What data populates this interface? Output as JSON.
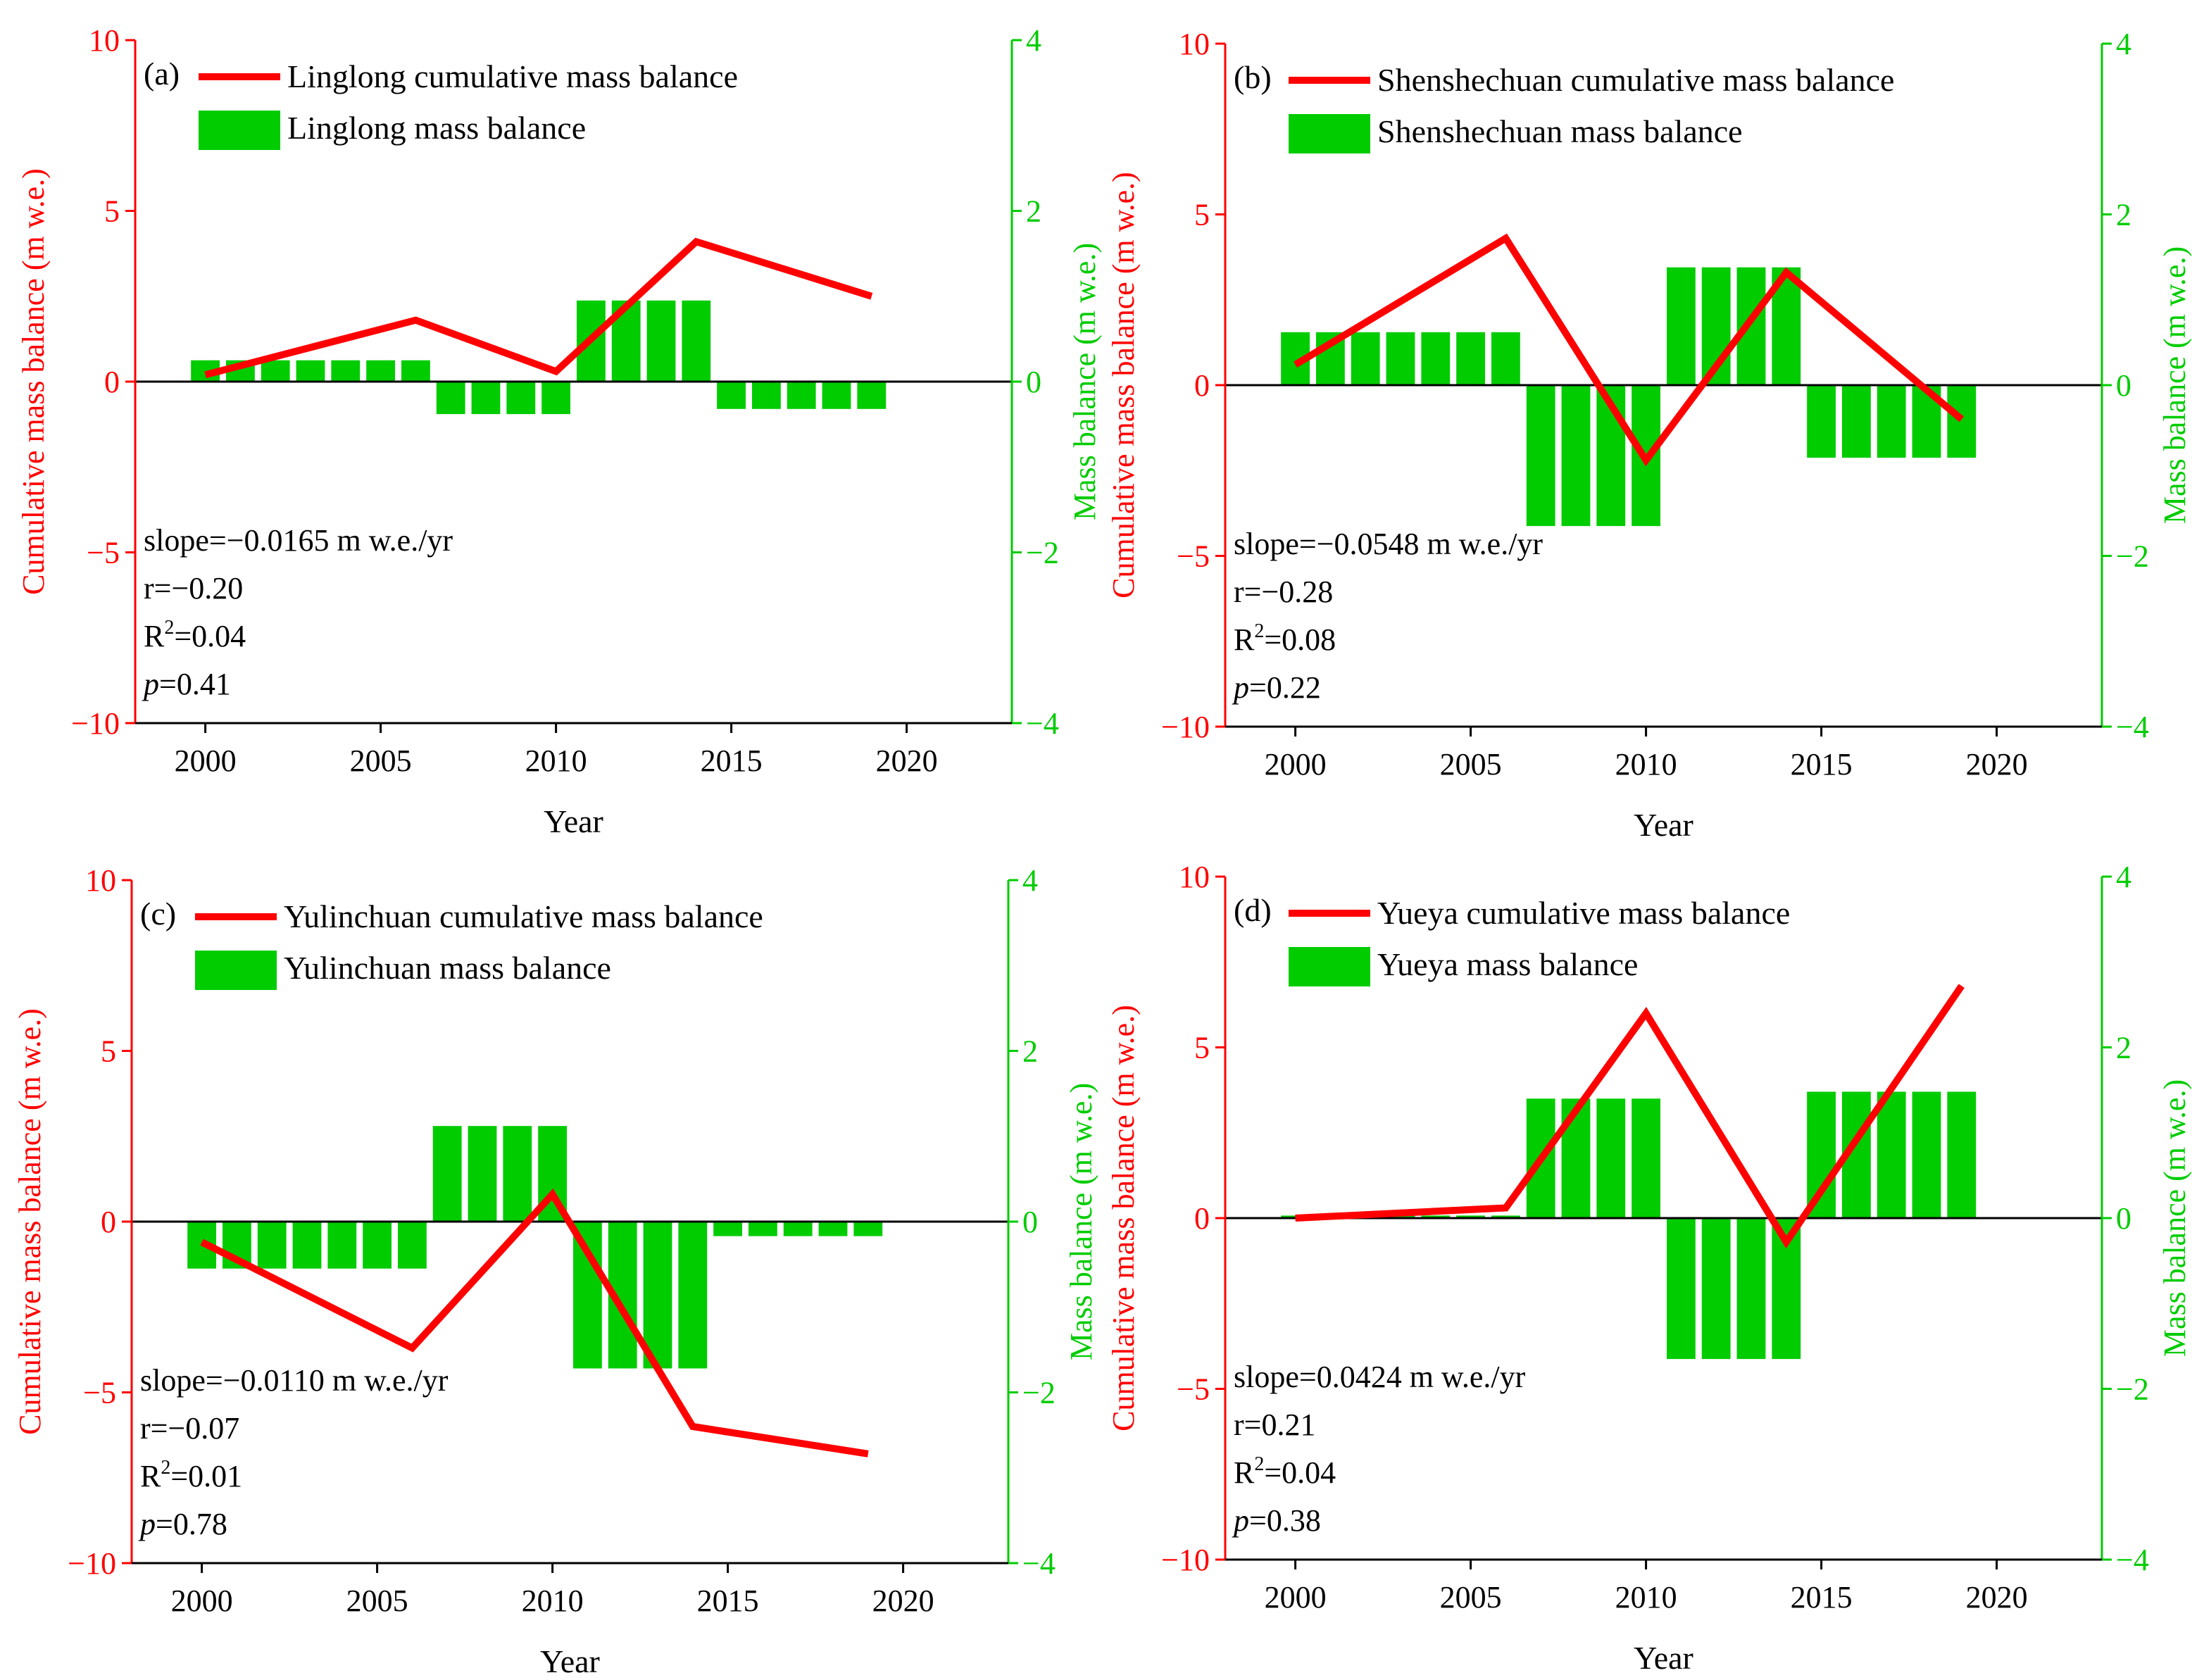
{
  "figure": {
    "x_title": "Year",
    "y_left_title": "Cumulative mass balance (m w.e.)",
    "y_right_title": "Mass balance (m w.e.)"
  },
  "colors": {
    "line": "#ff0000",
    "bar": "#00cc00",
    "axis": "#000000",
    "left_axis": "#ff0000",
    "right_axis": "#00cc00"
  },
  "chart_data": [
    {
      "type": "bar+line",
      "panel_label": "(a)",
      "glacier": "Linglong",
      "legend_line": "Linglong cumulative mass balance",
      "legend_bar": "Linglong mass balance",
      "xlabel": "Year",
      "ylabel_left": "Cumulative mass balance (m w.e.)",
      "ylabel_right": "Mass balance (m w.e.)",
      "xlim": [
        1998,
        2023
      ],
      "ylim_left": [
        -10,
        10
      ],
      "ylim_right": [
        -4,
        4
      ],
      "x_ticks": [
        2000,
        2005,
        2010,
        2015,
        2020
      ],
      "y_left_ticks": [
        -10,
        -5,
        0,
        5,
        10
      ],
      "y_right_ticks": [
        -4,
        -2,
        0,
        2,
        4
      ],
      "cumulative": {
        "years": [
          2000,
          2006,
          2010,
          2014,
          2019
        ],
        "values": [
          0.2,
          1.8,
          0.3,
          4.1,
          2.5
        ]
      },
      "annual": {
        "years": [
          2000,
          2001,
          2002,
          2003,
          2004,
          2005,
          2006,
          2007,
          2008,
          2009,
          2010,
          2011,
          2012,
          2013,
          2014,
          2015,
          2016,
          2017,
          2018,
          2019
        ],
        "values": [
          0.25,
          0.25,
          0.25,
          0.25,
          0.25,
          0.25,
          0.25,
          -0.38,
          -0.38,
          -0.38,
          -0.38,
          0.95,
          0.95,
          0.95,
          0.95,
          -0.32,
          -0.32,
          -0.32,
          -0.32,
          -0.32
        ]
      },
      "stats": {
        "slope": "=−0.0165 m w.e./yr",
        "r": "r=−0.20",
        "r2": "=0.04",
        "p": "=0.41"
      }
    },
    {
      "type": "bar+line",
      "panel_label": "(b)",
      "glacier": "Shenshechuan",
      "legend_line": "Shenshechuan cumulative mass balance",
      "legend_bar": "Shenshechuan mass balance",
      "xlabel": "Year",
      "ylabel_left": "Cumulative mass balance (m w.e.)",
      "ylabel_right": "Mass balance (m w.e.)",
      "xlim": [
        1998,
        2023
      ],
      "ylim_left": [
        -10,
        10
      ],
      "ylim_right": [
        -4,
        4
      ],
      "x_ticks": [
        2000,
        2005,
        2010,
        2015,
        2020
      ],
      "y_left_ticks": [
        -10,
        -5,
        0,
        5,
        10
      ],
      "y_right_ticks": [
        -4,
        -2,
        0,
        2,
        4
      ],
      "cumulative": {
        "years": [
          2000,
          2006,
          2010,
          2014,
          2019
        ],
        "values": [
          0.6,
          4.3,
          -2.2,
          3.3,
          -1.0
        ]
      },
      "annual": {
        "years": [
          2000,
          2001,
          2002,
          2003,
          2004,
          2005,
          2006,
          2007,
          2008,
          2009,
          2010,
          2011,
          2012,
          2013,
          2014,
          2015,
          2016,
          2017,
          2018,
          2019
        ],
        "values": [
          0.62,
          0.62,
          0.62,
          0.62,
          0.62,
          0.62,
          0.62,
          -1.65,
          -1.65,
          -1.65,
          -1.65,
          1.38,
          1.38,
          1.38,
          1.38,
          -0.85,
          -0.85,
          -0.85,
          -0.85,
          -0.85
        ]
      },
      "stats": {
        "slope": "=−0.0548 m w.e./yr",
        "r": "r=−0.28",
        "r2": "=0.08",
        "p": "=0.22"
      }
    },
    {
      "type": "bar+line",
      "panel_label": "(c)",
      "glacier": "Yulinchuan",
      "legend_line": "Yulinchuan cumulative mass balance",
      "legend_bar": "Yulinchuan mass balance",
      "xlabel": "Year",
      "ylabel_left": "Cumulative mass balance (m w.e.)",
      "ylabel_right": "Mass balance (m w.e.)",
      "xlim": [
        1998,
        2023
      ],
      "ylim_left": [
        -10,
        10
      ],
      "ylim_right": [
        -4,
        4
      ],
      "x_ticks": [
        2000,
        2005,
        2010,
        2015,
        2020
      ],
      "y_left_ticks": [
        -10,
        -5,
        0,
        5,
        10
      ],
      "y_right_ticks": [
        -4,
        -2,
        0,
        2,
        4
      ],
      "cumulative": {
        "years": [
          2000,
          2006,
          2010,
          2014,
          2019
        ],
        "values": [
          -0.6,
          -3.7,
          0.8,
          -6.0,
          -6.8
        ]
      },
      "annual": {
        "years": [
          2000,
          2001,
          2002,
          2003,
          2004,
          2005,
          2006,
          2007,
          2008,
          2009,
          2010,
          2011,
          2012,
          2013,
          2014,
          2015,
          2016,
          2017,
          2018,
          2019
        ],
        "values": [
          -0.55,
          -0.55,
          -0.55,
          -0.55,
          -0.55,
          -0.55,
          -0.55,
          1.12,
          1.12,
          1.12,
          1.12,
          -1.72,
          -1.72,
          -1.72,
          -1.72,
          -0.17,
          -0.17,
          -0.17,
          -0.17,
          -0.17
        ]
      },
      "stats": {
        "slope": "=−0.0110 m w.e./yr",
        "r": "r=−0.07",
        "r2": "=0.01",
        "p": "=0.78"
      }
    },
    {
      "type": "bar+line",
      "panel_label": "(d)",
      "glacier": "Yueya",
      "legend_line": "Yueya cumulative mass balance",
      "legend_bar": "Yueya mass balance",
      "xlabel": "Year",
      "ylabel_left": "Cumulative mass balance (m w.e.)",
      "ylabel_right": "Mass balance (m w.e.)",
      "xlim": [
        1998,
        2023
      ],
      "ylim_left": [
        -10,
        10
      ],
      "ylim_right": [
        -4,
        4
      ],
      "x_ticks": [
        2000,
        2005,
        2010,
        2015,
        2020
      ],
      "y_left_ticks": [
        -10,
        -5,
        0,
        5,
        10
      ],
      "y_right_ticks": [
        -4,
        -2,
        0,
        2,
        4
      ],
      "cumulative": {
        "years": [
          2000,
          2006,
          2010,
          2014,
          2019
        ],
        "values": [
          0.0,
          0.3,
          6.0,
          -0.7,
          6.8
        ]
      },
      "annual": {
        "years": [
          2000,
          2001,
          2002,
          2003,
          2004,
          2005,
          2006,
          2007,
          2008,
          2009,
          2010,
          2011,
          2012,
          2013,
          2014,
          2015,
          2016,
          2017,
          2018,
          2019
        ],
        "values": [
          0.03,
          0.03,
          0.03,
          0.03,
          0.03,
          0.03,
          0.03,
          1.4,
          1.4,
          1.4,
          1.4,
          -1.65,
          -1.65,
          -1.65,
          -1.65,
          1.48,
          1.48,
          1.48,
          1.48,
          1.48
        ]
      },
      "stats": {
        "slope": "=0.0424 m w.e./yr",
        "r": "r=0.21",
        "r2": "=0.04",
        "p": "=0.38"
      }
    }
  ]
}
